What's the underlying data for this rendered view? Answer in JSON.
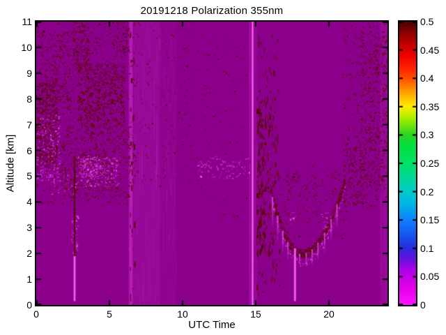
{
  "chart_data": {
    "type": "heatmap",
    "title": "20191218 Polarization 355nm",
    "xlabel": "UTC Time",
    "ylabel": "Altitude [km]",
    "xlim": [
      0,
      24
    ],
    "ylim": [
      0,
      11
    ],
    "grid": false,
    "legend": "colorbar-right",
    "seed": 42,
    "x_ticks": {
      "values": [
        0,
        5,
        10,
        15,
        20
      ],
      "labels": [
        "0",
        "5",
        "10",
        "15",
        "20"
      ]
    },
    "y_ticks": {
      "values": [
        0,
        1,
        2,
        3,
        4,
        5,
        6,
        7,
        8,
        9,
        10,
        11
      ],
      "labels": [
        "0",
        "1",
        "2",
        "3",
        "4",
        "5",
        "6",
        "7",
        "8",
        "9",
        "10",
        "11"
      ]
    },
    "colorbar": {
      "min": 0,
      "max": 0.5,
      "ticks": {
        "values": [
          0,
          0.05,
          0.1,
          0.15,
          0.2,
          0.25,
          0.3,
          0.35,
          0.4,
          0.45,
          0.5
        ],
        "labels": [
          "0",
          "0.05",
          "0.1",
          "0.15",
          "0.2",
          "0.25",
          "0.3",
          "0.35",
          "0.4",
          "0.45",
          "0.5"
        ]
      },
      "stops": [
        {
          "v": 0.0,
          "c": "#ff14ff"
        },
        {
          "v": 0.03,
          "c": "#e400e9"
        },
        {
          "v": 0.06,
          "c": "#b300e6"
        },
        {
          "v": 0.08,
          "c": "#6a10dd"
        },
        {
          "v": 0.1,
          "c": "#2b2bdb"
        },
        {
          "v": 0.125,
          "c": "#1559ee"
        },
        {
          "v": 0.15,
          "c": "#1080ff"
        },
        {
          "v": 0.175,
          "c": "#00b0e8"
        },
        {
          "v": 0.2,
          "c": "#00cccc"
        },
        {
          "v": 0.225,
          "c": "#00d898"
        },
        {
          "v": 0.25,
          "c": "#00e065"
        },
        {
          "v": 0.28,
          "c": "#00e040"
        },
        {
          "v": 0.3,
          "c": "#2ad520"
        },
        {
          "v": 0.33,
          "c": "#aaee00"
        },
        {
          "v": 0.35,
          "c": "#ffee00"
        },
        {
          "v": 0.38,
          "c": "#ff9100"
        },
        {
          "v": 0.4,
          "c": "#ff4c00"
        },
        {
          "v": 0.42,
          "c": "#ff1e00"
        },
        {
          "v": 0.44,
          "c": "#ee0000"
        },
        {
          "v": 0.46,
          "c": "#c40000"
        },
        {
          "v": 0.48,
          "c": "#8b0000"
        },
        {
          "v": 0.5,
          "c": "#4d0000"
        }
      ]
    },
    "colors": {
      "background": "#8b008b",
      "frame": "#000000",
      "dark_palette": [
        "#4c0404",
        "#5a0202",
        "#660808",
        "#701010",
        "#531111"
      ],
      "pink_palette": [
        "#b91ab9",
        "#cb2fcb",
        "#e04ce0",
        "#f060f0",
        "#aa10aa"
      ],
      "bright_line": "#ee46ee"
    },
    "features": {
      "light_bands": [
        {
          "t0": 6.28,
          "t1": 8.45,
          "a": 0.1
        },
        {
          "t0": 6.36,
          "t1": 6.58,
          "a": 0.28
        },
        {
          "t0": 8.45,
          "t1": 9.6,
          "a": 0.04
        },
        {
          "t0": 14.52,
          "t1": 15.1,
          "a": 0.07
        },
        {
          "t0": 23.5,
          "t1": 24,
          "a": 0.1
        }
      ],
      "dark_regions": [
        {
          "t0": 0,
          "t1": 6.6,
          "z0": 3.9,
          "z1": 11,
          "d": 0.05,
          "style": "dot"
        },
        {
          "t0": 0,
          "t1": 1.4,
          "z0": 5.3,
          "z1": 8.7,
          "d": 0.3,
          "style": "dot"
        },
        {
          "t0": 0.1,
          "t1": 2.3,
          "z0": 7.6,
          "z1": 10.6,
          "d": 0.1,
          "style": "dot"
        },
        {
          "t0": 2.4,
          "t1": 3.6,
          "z0": 9.2,
          "z1": 11,
          "d": 0.22,
          "style": "dot"
        },
        {
          "t0": 2.8,
          "t1": 6.0,
          "z0": 6.9,
          "z1": 9.4,
          "d": 0.26,
          "style": "dot"
        },
        {
          "t0": 1.6,
          "t1": 6.4,
          "z0": 4.2,
          "z1": 7.0,
          "d": 0.1,
          "style": "dot"
        },
        {
          "t0": 5.2,
          "t1": 6.4,
          "z0": 9.8,
          "z1": 11,
          "d": 0.12,
          "style": "dot"
        },
        {
          "t0": 6.4,
          "t1": 6.7,
          "z0": 0,
          "z1": 11,
          "d": 0.06,
          "style": "streak"
        },
        {
          "t0": 6.6,
          "t1": 10.8,
          "z0": 4.5,
          "z1": 11,
          "d": 0.018,
          "style": "dot"
        },
        {
          "t0": 10.8,
          "t1": 14.6,
          "z0": 3.2,
          "z1": 10.5,
          "d": 0.01,
          "style": "dot"
        },
        {
          "t0": 15.05,
          "t1": 16.6,
          "z0": 0.5,
          "z1": 10.5,
          "d": 0.04,
          "style": "streak"
        },
        {
          "t0": 15.05,
          "t1": 16.35,
          "z0": 1.8,
          "z1": 8.2,
          "d": 0.09,
          "style": "streak"
        },
        {
          "t0": 15.05,
          "t1": 15.6,
          "z0": 2.0,
          "z1": 7.5,
          "d": 0.16,
          "style": "streak"
        },
        {
          "t0": 16.3,
          "t1": 21.2,
          "z0": 2.6,
          "z1": 5.2,
          "d": 0.05,
          "style": "dot"
        },
        {
          "t0": 16.8,
          "t1": 19.2,
          "z0": 4.3,
          "z1": 5.5,
          "d": 0.02,
          "style": "dot"
        },
        {
          "t0": 20.9,
          "t1": 24,
          "z0": 3.8,
          "z1": 11,
          "d": 0.05,
          "style": "dot"
        },
        {
          "t0": 22.1,
          "t1": 24,
          "z0": 4.4,
          "z1": 10.6,
          "d": 0.1,
          "style": "dot"
        },
        {
          "t0": 21.0,
          "t1": 22.4,
          "z0": 3.9,
          "z1": 6.2,
          "d": 0.1,
          "style": "dot"
        }
      ],
      "pink_regions": [
        {
          "t0": 0,
          "t1": 1.6,
          "z0": 4.8,
          "z1": 7.4,
          "d": 0.18
        },
        {
          "t0": 2.6,
          "t1": 5.7,
          "z0": 4.6,
          "z1": 5.8,
          "d": 0.22
        },
        {
          "t0": 1.0,
          "t1": 2.6,
          "z0": 4.3,
          "z1": 5.2,
          "d": 0.08
        },
        {
          "t0": 3.0,
          "t1": 4.2,
          "z0": 5.0,
          "z1": 5.75,
          "d": 0.45
        },
        {
          "t0": 2.4,
          "t1": 2.85,
          "z0": 2.0,
          "z1": 3.6,
          "d": 0.25
        },
        {
          "t0": 17.3,
          "t1": 17.7,
          "z0": 3.1,
          "z1": 3.6,
          "d": 0.22
        },
        {
          "t0": 19.4,
          "t1": 20.1,
          "z0": 2.9,
          "z1": 3.6,
          "d": 0.15
        },
        {
          "t0": 11.0,
          "t1": 14.55,
          "z0": 4.9,
          "z1": 5.6,
          "d": 0.1
        }
      ],
      "vertical_lines": [
        {
          "t": 2.62,
          "z0": 0.15,
          "z1": 1.9,
          "w": 3,
          "style": "bright"
        },
        {
          "t": 2.62,
          "z0": 1.9,
          "z1": 5.8,
          "w": 2,
          "style": "dark"
        },
        {
          "t": 14.78,
          "z0": 0,
          "z1": 11,
          "w": 2.5,
          "style": "bright"
        },
        {
          "t": 14.6,
          "z0": 0,
          "z1": 11,
          "w": 1,
          "style": "faint"
        },
        {
          "t": 17.68,
          "z0": 0.15,
          "z1": 2.2,
          "w": 3,
          "style": "bright"
        }
      ],
      "arc": {
        "t0": 16.0,
        "t1": 21.1,
        "tmin": 18.1,
        "zmin": 2.0,
        "z_left": 4.55,
        "z_right": 4.9,
        "half_width": 0.18,
        "density": 0.5
      },
      "virga": [
        {
          "t": 16.15,
          "len": 1.25
        },
        {
          "t": 16.5,
          "len": 1.05
        },
        {
          "t": 16.85,
          "len": 0.9
        },
        {
          "t": 17.2,
          "len": 0.75
        },
        {
          "t": 18.0,
          "len": 0.5
        },
        {
          "t": 18.45,
          "len": 0.6
        },
        {
          "t": 18.85,
          "len": 0.7
        },
        {
          "t": 19.25,
          "len": 0.75
        },
        {
          "t": 19.7,
          "len": 0.85
        },
        {
          "t": 20.15,
          "len": 0.9
        },
        {
          "t": 20.55,
          "len": 1.0
        }
      ],
      "cloud_band": {
        "t0": 11.0,
        "t1": 14.55,
        "z_top": 5.58,
        "wave_amp": 0.15,
        "dot_density": 0.55
      }
    }
  }
}
